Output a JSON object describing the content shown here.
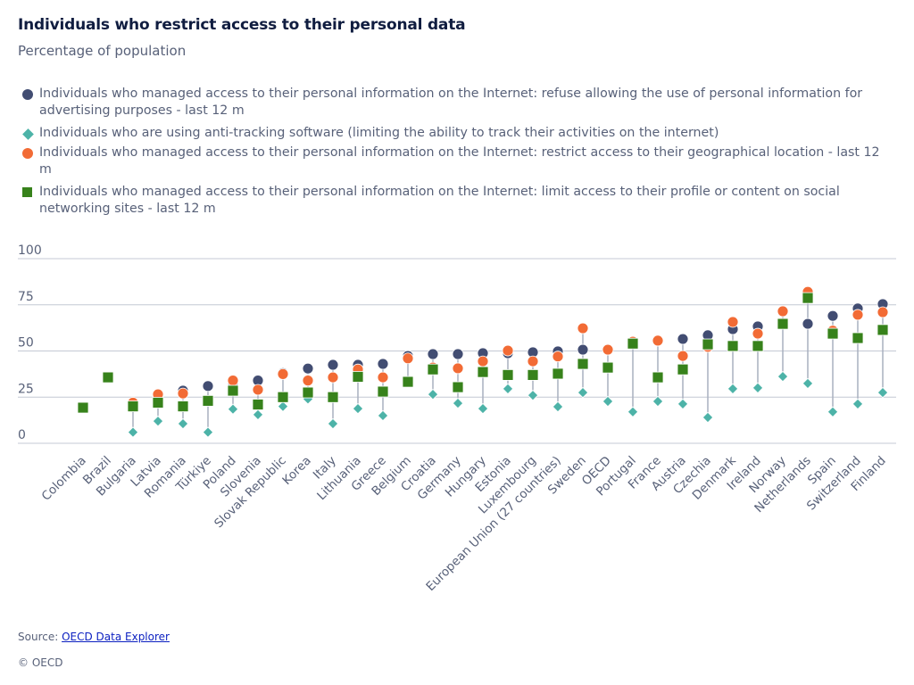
{
  "header": {
    "title": "Individuals who restrict access to their personal data",
    "subtitle": "Percentage of population"
  },
  "footer": {
    "source_label": "Source: ",
    "source_link": "OECD Data Explorer",
    "copyright": "© OECD"
  },
  "chart_data": {
    "type": "scatter",
    "title": "Individuals who restrict access to their personal data",
    "subtitle": "Percentage of population",
    "xlabel": "",
    "ylabel": "",
    "ylim": [
      0,
      100
    ],
    "yticks": [
      0,
      25,
      50,
      75,
      100
    ],
    "ytick_labels": [
      "0",
      "25",
      "50",
      "75",
      "100"
    ],
    "grid": true,
    "legend_position": "top",
    "categories": [
      "Colombia",
      "Brazil",
      "Bulgaria",
      "Latvia",
      "Romania",
      "Türkiye",
      "Poland",
      "Slovenia",
      "Slovak Republic",
      "Korea",
      "Italy",
      "Lithuania",
      "Greece",
      "Belgium",
      "Croatia",
      "Germany",
      "Hungary",
      "Estonia",
      "Luxembourg",
      "European Union (27 countries)",
      "Sweden",
      "OECD",
      "Portugal",
      "France",
      "Austria",
      "Czechia",
      "Denmark",
      "Ireland",
      "Norway",
      "Netherlands",
      "Spain",
      "Switzerland",
      "Finland"
    ],
    "series": [
      {
        "name": "Individuals who managed access to their personal information on the Internet: refuse allowing the use of personal information for advertising purposes - last 12 m",
        "marker": "circle",
        "color": "#424d72",
        "values": [
          null,
          null,
          null,
          null,
          28.5,
          31,
          33,
          34,
          38,
          40.5,
          42.5,
          42.5,
          43,
          47.3,
          48.3,
          48.3,
          48.8,
          48.8,
          49.3,
          49.8,
          50.7,
          51,
          null,
          55.5,
          56.5,
          58.5,
          61.8,
          63.3,
          null,
          64.7,
          69,
          73,
          75.4
        ]
      },
      {
        "name": "Individuals who are using anti-tracking software (limiting the ability to track their activities on the internet)",
        "marker": "diamond",
        "color": "#4db3a8",
        "values": [
          null,
          null,
          6,
          12,
          10.6,
          6,
          18.5,
          15.5,
          20,
          24,
          10.6,
          18.8,
          15,
          null,
          26.5,
          21.7,
          18.8,
          29.5,
          26,
          19.8,
          27.5,
          22.7,
          17,
          22.7,
          21.3,
          14,
          29.5,
          30,
          36.2,
          32.4,
          17,
          21.3,
          27.5
        ]
      },
      {
        "name": "Individuals who managed access to their personal information on the Internet: restrict access to their geographical location - last 12 m",
        "marker": "circle",
        "color": "#f26b35",
        "values": [
          null,
          null,
          22,
          26.5,
          27,
          null,
          34,
          29,
          37.5,
          34,
          35.7,
          40,
          35.7,
          46,
          41,
          40.6,
          44.4,
          50.2,
          44.4,
          47,
          62.3,
          50.7,
          55,
          55.6,
          47.3,
          52.2,
          65.7,
          59.4,
          71.5,
          82,
          61,
          69.6,
          71
        ]
      },
      {
        "name": "Individuals who managed access to their personal information on the Internet: limit access to their profile or content on social networking sites - last 12 m",
        "marker": "square",
        "color": "#37821b",
        "values": [
          19.3,
          35.7,
          20,
          22,
          20,
          23,
          28.5,
          21,
          25,
          27.5,
          25,
          36,
          28,
          33.3,
          40,
          30.4,
          38.6,
          37,
          37,
          37.7,
          43,
          41,
          54,
          35.7,
          40,
          53.6,
          52.7,
          52.7,
          64.7,
          78.7,
          59.4,
          57,
          61.4
        ]
      }
    ]
  }
}
